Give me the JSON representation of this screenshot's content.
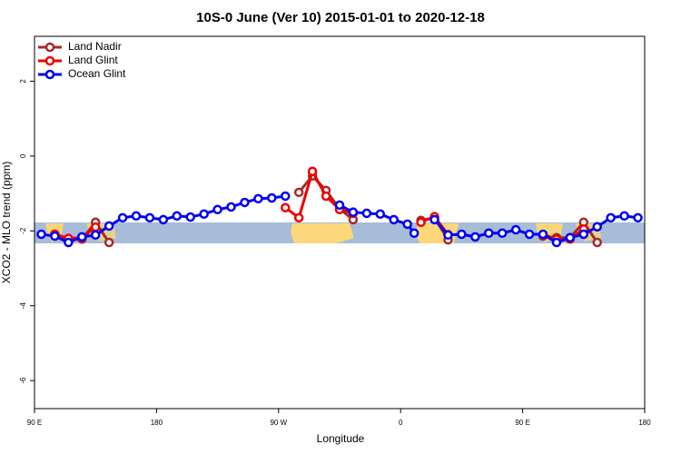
{
  "chart_data": {
    "type": "line",
    "title": "10S-0 June (Ver 10)   2015-01-01 to 2020-12-18",
    "x_label": "Longitude",
    "y_label": "XCO2 - MLO trend (ppm)",
    "xlim": [
      90,
      540
    ],
    "xticks": [
      {
        "value": 90,
        "label": "90 E"
      },
      180,
      {
        "value": 270,
        "label": "90 W"
      },
      {
        "value": 360,
        "label": "0"
      },
      {
        "value": 450,
        "label": "90 E"
      },
      {
        "value": 540,
        "label": "180"
      }
    ],
    "ylim": [
      -6.75,
      3.2
    ],
    "yticks": [
      2,
      0,
      -2,
      -4,
      -6
    ],
    "legend": "top-left",
    "series": [
      {
        "name": "Land Nadir",
        "color": "#a52a2a",
        "x": [
          105,
          115,
          125,
          135,
          145,
          285,
          295,
          305,
          315,
          325,
          375,
          385,
          395,
          465,
          475,
          485,
          495,
          505
        ],
        "values": [
          -2.09,
          -2.22,
          -2.22,
          -1.77,
          -2.31,
          -0.97,
          -0.53,
          -0.92,
          -1.41,
          -1.7,
          -1.72,
          -1.65,
          -2.24,
          -2.14,
          -2.18,
          -2.18,
          -1.77,
          -2.31
        ]
      },
      {
        "name": "Land Glint",
        "color": "#ee0000",
        "x": [
          105,
          115,
          125,
          135,
          275,
          285,
          295,
          305,
          315,
          325,
          375,
          385,
          395,
          465,
          475,
          485,
          495
        ],
        "values": [
          -2.09,
          -2.2,
          -2.18,
          -1.9,
          -1.38,
          -1.65,
          -0.41,
          -1.07,
          -1.43,
          -1.53,
          -1.77,
          -1.62,
          -2.1,
          -2.1,
          -2.22,
          -2.22,
          -1.95
        ]
      },
      {
        "name": "Ocean Glint",
        "color": "#0000ee",
        "x": [
          95,
          105,
          115,
          125,
          135,
          145,
          155,
          165,
          175,
          185,
          195,
          205,
          215,
          225,
          235,
          245,
          255,
          265,
          275,
          315,
          325,
          335,
          345,
          355,
          365,
          370,
          385,
          395,
          405,
          415,
          425,
          435,
          445,
          455,
          465,
          475,
          485,
          495,
          505,
          515,
          525,
          535
        ],
        "values": [
          -2.09,
          -2.14,
          -2.31,
          -2.16,
          -2.11,
          -1.87,
          -1.65,
          -1.6,
          -1.65,
          -1.7,
          -1.6,
          -1.63,
          -1.55,
          -1.43,
          -1.36,
          -1.24,
          -1.14,
          -1.12,
          -1.07,
          -1.31,
          -1.5,
          -1.53,
          -1.55,
          -1.7,
          -1.82,
          -2.06,
          -1.7,
          -2.11,
          -2.09,
          -2.16,
          -2.06,
          -2.06,
          -1.97,
          -2.09,
          -2.09,
          -2.31,
          -2.18,
          -2.09,
          -1.89,
          -1.65,
          -1.6,
          -1.65
        ]
      }
    ]
  }
}
